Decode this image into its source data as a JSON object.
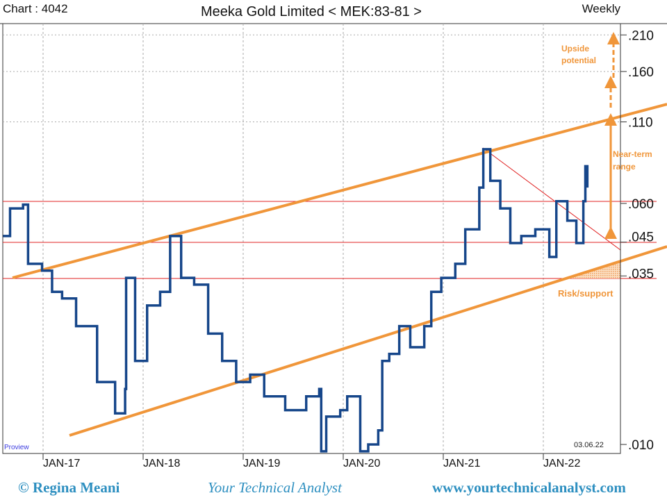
{
  "header": {
    "chart_id": "Chart : 4042",
    "title": "Meeka Gold Limited < MEK:83-81 >",
    "period": "Weekly"
  },
  "footer": {
    "copyright": "© Regina Meani",
    "tagline": "Your Technical Analyst",
    "website": "www.yourtechnicalanalyst.com"
  },
  "chart_data": {
    "type": "line",
    "title": "Meeka Gold Limited < MEK:83-81 >",
    "scale": "log",
    "xlabel": "",
    "ylabel": "",
    "x_ticks": [
      {
        "label": "JAN-17",
        "x": 2017
      },
      {
        "label": "JAN-18",
        "x": 2018
      },
      {
        "label": "JAN-19",
        "x": 2019
      },
      {
        "label": "JAN-20",
        "x": 2020
      },
      {
        "label": "JAN-21",
        "x": 2021
      },
      {
        "label": "JAN-22",
        "x": 2022
      }
    ],
    "y_ticks": [
      {
        "label": ".210",
        "v": 0.21
      },
      {
        "label": ".160",
        "v": 0.16
      },
      {
        "label": ".110",
        "v": 0.11
      },
      {
        "label": ".060",
        "v": 0.06
      },
      {
        "label": ".045",
        "v": 0.045
      },
      {
        "label": ".035",
        "v": 0.035
      },
      {
        "label": ".010",
        "v": 0.01
      }
    ],
    "xlim": [
      2016.59,
      2022.75
    ],
    "ylim": [
      0.0095,
      0.24
    ],
    "series": [
      {
        "name": "MEK weekly price",
        "color": "#16468a",
        "x": [
          2016.6,
          2016.67,
          2016.8,
          2016.85,
          2016.99,
          2017.09,
          2017.19,
          2017.33,
          2017.54,
          2017.72,
          2017.82,
          2017.83,
          2017.92,
          2018.04,
          2018.17,
          2018.27,
          2018.38,
          2018.51,
          2018.65,
          2018.79,
          2018.93,
          2019.07,
          2019.21,
          2019.42,
          2019.63,
          2019.76,
          2019.78,
          2019.83,
          2019.97,
          2020.04,
          2020.17,
          2020.25,
          2020.35,
          2020.39,
          2020.46,
          2020.56,
          2020.67,
          2020.81,
          2020.88,
          2020.98,
          2021.12,
          2021.22,
          2021.36,
          2021.4,
          2021.47,
          2021.57,
          2021.67,
          2021.78,
          2021.92,
          2022.06,
          2022.13,
          2022.24,
          2022.33,
          2022.4,
          2022.42,
          2022.44
        ],
        "y": [
          0.0471,
          0.0578,
          0.0595,
          0.0383,
          0.0364,
          0.0311,
          0.0296,
          0.0241,
          0.0159,
          0.0126,
          0.0151,
          0.0345,
          0.0186,
          0.0281,
          0.0311,
          0.0471,
          0.0345,
          0.0328,
          0.0228,
          0.0186,
          0.0159,
          0.0168,
          0.0143,
          0.0129,
          0.0143,
          0.0151,
          0.0095,
          0.0123,
          0.0129,
          0.0143,
          0.0095,
          0.01,
          0.0111,
          0.0186,
          0.0196,
          0.0241,
          0.0206,
          0.0241,
          0.0311,
          0.0345,
          0.0383,
          0.0495,
          0.0675,
          0.0898,
          0.071,
          0.0578,
          0.0447,
          0.0471,
          0.0495,
          0.0403,
          0.061,
          0.0528,
          0.0447,
          0.061,
          0.0791,
          0.0675
        ]
      }
    ],
    "levels": [
      0.06,
      0.045,
      0.035
    ],
    "annotations": [
      "Upside potential",
      "Near-term range",
      "Risk/support"
    ],
    "date_stamp": "03.06.22",
    "watermark": "Proview",
    "grid": true,
    "legend": "none"
  }
}
